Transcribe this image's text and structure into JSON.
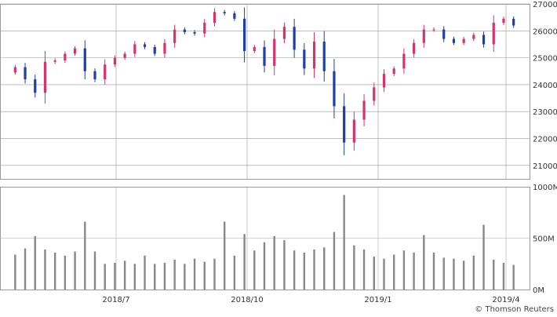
{
  "chart_data": [
    {
      "type": "candlestick",
      "panel": "price",
      "x_tick_labels": [
        "2018/7",
        "2018/10",
        "2019/1",
        "2019/4"
      ],
      "y_tick_labels": [
        "27000",
        "26000",
        "25000",
        "24000",
        "23000",
        "22000",
        "21000"
      ],
      "ylim": [
        20500,
        27000
      ],
      "grid": true,
      "colors": {
        "up": "#d6336c",
        "down": "#1f3fa8",
        "grid": "#999999"
      },
      "series": [
        {
          "x": [
            "2018-05-02",
            "2018-05-09",
            "2018-05-16",
            "2018-05-23",
            "2018-05-30",
            "2018-06-06",
            "2018-06-13",
            "2018-06-20",
            "2018-06-27",
            "2018-07-04",
            "2018-07-11",
            "2018-07-18",
            "2018-07-25",
            "2018-08-01",
            "2018-08-08",
            "2018-08-15",
            "2018-08-22",
            "2018-08-29",
            "2018-09-05",
            "2018-09-12",
            "2018-09-19",
            "2018-09-26",
            "2018-10-03",
            "2018-10-10",
            "2018-10-17",
            "2018-10-24",
            "2018-10-31",
            "2018-11-07",
            "2018-11-14",
            "2018-11-21",
            "2018-11-28",
            "2018-12-05",
            "2018-12-12",
            "2018-12-19",
            "2018-12-26",
            "2019-01-02",
            "2019-01-09",
            "2019-01-16",
            "2019-01-23",
            "2019-01-30",
            "2019-02-06",
            "2019-02-13",
            "2019-02-20",
            "2019-02-27",
            "2019-03-06",
            "2019-03-13",
            "2019-03-20",
            "2019-03-27",
            "2019-04-03",
            "2019-04-10",
            "2019-04-17"
          ],
          "close": [
            24650,
            24200,
            23700,
            24850,
            24900,
            25150,
            25350,
            24500,
            24200,
            24750,
            25000,
            25150,
            25500,
            25400,
            25150,
            25550,
            26050,
            25950,
            25900,
            26300,
            26700,
            26650,
            26450,
            25250,
            25400,
            24700,
            25700,
            26150,
            25300,
            24600,
            25600,
            24500,
            23200,
            21850,
            22700,
            23400,
            23900,
            24400,
            24600,
            25150,
            25550,
            26050,
            26050,
            25700,
            25550,
            25700,
            25850,
            25500,
            26300,
            26450,
            26200
          ]
        }
      ]
    },
    {
      "type": "bar",
      "panel": "volume",
      "x_tick_labels": [
        "2018/7",
        "2018/10",
        "2019/1",
        "2019/4"
      ],
      "y_tick_labels": [
        "1000M",
        "500M",
        "0M"
      ],
      "ylim": [
        0,
        1000
      ],
      "unit": "M",
      "grid": true,
      "colors": {
        "bar": "#888888"
      },
      "series": [
        {
          "x": [
            "2018-05-02",
            "2018-05-09",
            "2018-05-16",
            "2018-05-23",
            "2018-05-30",
            "2018-06-06",
            "2018-06-13",
            "2018-06-20",
            "2018-06-27",
            "2018-07-04",
            "2018-07-11",
            "2018-07-18",
            "2018-07-25",
            "2018-08-01",
            "2018-08-08",
            "2018-08-15",
            "2018-08-22",
            "2018-08-29",
            "2018-09-05",
            "2018-09-12",
            "2018-09-19",
            "2018-09-26",
            "2018-10-03",
            "2018-10-10",
            "2018-10-17",
            "2018-10-24",
            "2018-10-31",
            "2018-11-07",
            "2018-11-14",
            "2018-11-21",
            "2018-11-28",
            "2018-12-05",
            "2018-12-12",
            "2018-12-19",
            "2018-12-26",
            "2019-01-02",
            "2019-01-09",
            "2019-01-16",
            "2019-01-23",
            "2019-01-30",
            "2019-02-06",
            "2019-02-13",
            "2019-02-20",
            "2019-02-27",
            "2019-03-06",
            "2019-03-13",
            "2019-03-20",
            "2019-03-27",
            "2019-04-03",
            "2019-04-10",
            "2019-04-17"
          ],
          "values": [
            340,
            400,
            520,
            390,
            360,
            330,
            370,
            660,
            370,
            250,
            260,
            280,
            250,
            330,
            250,
            260,
            290,
            250,
            300,
            270,
            300,
            660,
            330,
            540,
            380,
            460,
            520,
            480,
            380,
            360,
            390,
            410,
            560,
            920,
            430,
            390,
            320,
            300,
            340,
            380,
            360,
            530,
            360,
            310,
            300,
            280,
            330,
            630,
            290,
            260,
            240
          ]
        }
      ]
    }
  ],
  "footer": {
    "credit": "© Thomson Reuters"
  }
}
